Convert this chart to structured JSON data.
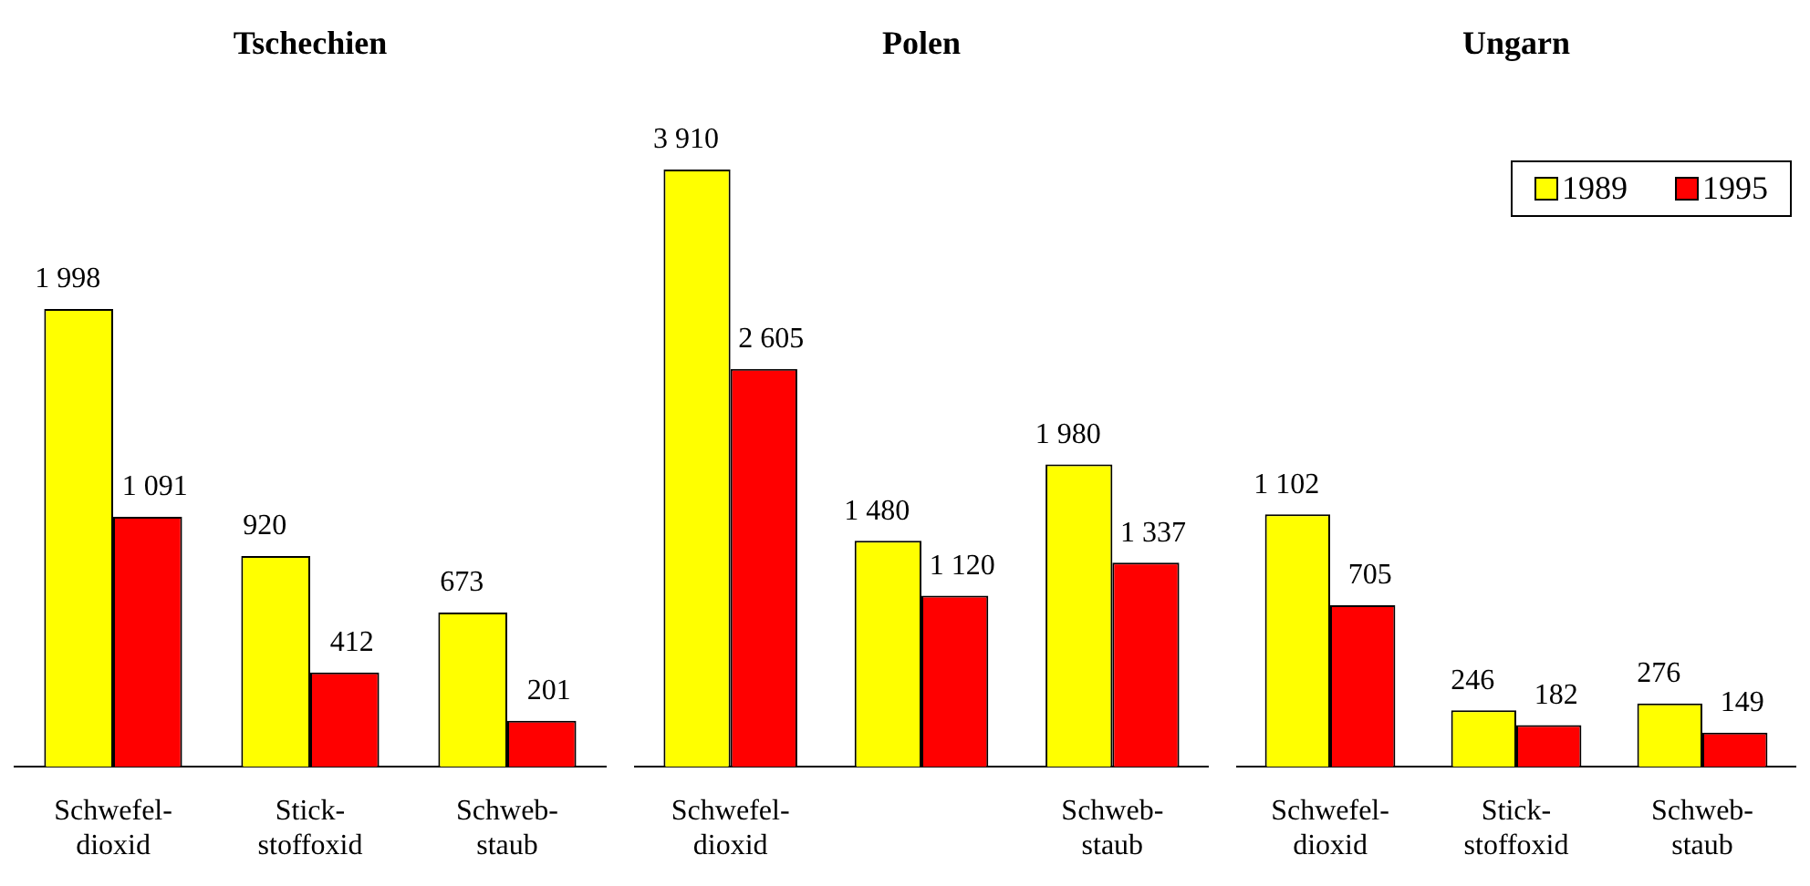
{
  "chart_data": [
    {
      "type": "bar",
      "title": "Tschechien",
      "categories": [
        "Schwefel-\ndioxid",
        "Stick-\nstoffoxid",
        "Schweb-\nstaub"
      ],
      "tick_labels": "x",
      "grid": false,
      "legend": false,
      "series": [
        {
          "color": "#ffff00",
          "values": [
            1998,
            920,
            673
          ],
          "value_labels": [
            "1 998",
            "920",
            "673"
          ]
        },
        {
          "color": "#ff0000",
          "values": [
            1091,
            412,
            201
          ],
          "value_labels": [
            "1 091",
            "412",
            "201"
          ]
        }
      ]
    },
    {
      "type": "bar",
      "title": "Polen",
      "categories": [
        "Schwefel-\ndioxid",
        null,
        "Schweb-\nstaub"
      ],
      "tick_labels": "x",
      "grid": false,
      "legend": false,
      "series": [
        {
          "color": "#ffff00",
          "values": [
            3910,
            1480,
            1980
          ],
          "value_labels": [
            "3 910",
            "1 480",
            "1 980"
          ]
        },
        {
          "color": "#ff0000",
          "values": [
            2605,
            1120,
            1337
          ],
          "value_labels": [
            "2 605",
            "1 120",
            "1 337"
          ]
        }
      ]
    },
    {
      "type": "bar",
      "title": "Ungarn",
      "categories": [
        "Schwefel-\ndioxid",
        "Stick-\nstoffoxid",
        "Schweb-\nstaub"
      ],
      "tick_labels": "x",
      "grid": false,
      "legend": "top right",
      "series": [
        {
          "name": "1989",
          "color": "#ffff00",
          "values": [
            1102,
            246,
            276
          ],
          "value_labels": [
            "1 102",
            "246",
            "276"
          ]
        },
        {
          "name": "1995",
          "color": "#ff0000",
          "values": [
            705,
            182,
            149
          ],
          "value_labels": [
            "705",
            "182",
            "149"
          ]
        }
      ]
    }
  ]
}
